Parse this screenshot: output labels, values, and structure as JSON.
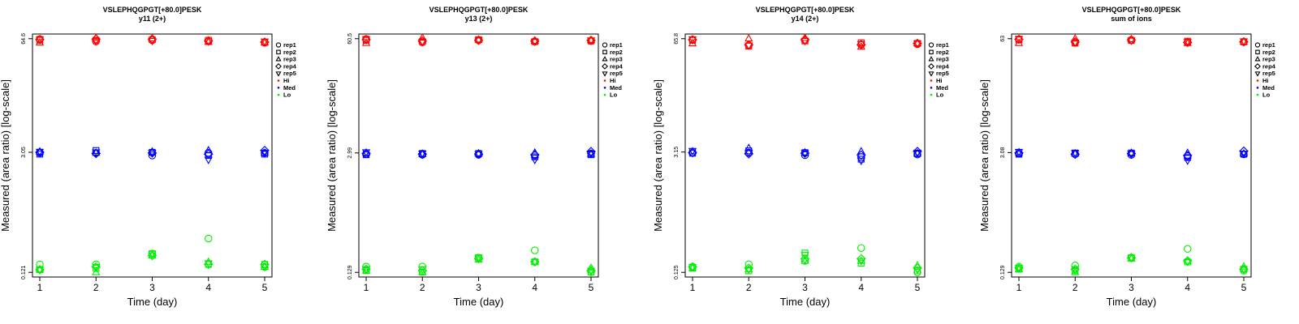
{
  "colors": {
    "Hi": "#ff0000",
    "Med": "#0000ff",
    "Lo": "#00ee00"
  },
  "legend": {
    "reps": [
      {
        "label": "rep1",
        "shape": "circle"
      },
      {
        "label": "rep2",
        "shape": "square"
      },
      {
        "label": "rep3",
        "shape": "triangle-up"
      },
      {
        "label": "rep4",
        "shape": "diamond"
      },
      {
        "label": "rep5",
        "shape": "triangle-down"
      }
    ],
    "levels": [
      {
        "label": "Hi",
        "color": "#ff0000"
      },
      {
        "label": "Med",
        "color": "#0000ff"
      },
      {
        "label": "Lo",
        "color": "#00ee00"
      }
    ]
  },
  "chart_data": [
    {
      "type": "scatter",
      "title": "VSLEPHQGPGT[+80.0]PESK",
      "subtitle": "y11 (2+)",
      "xlabel": "Time (day)",
      "ylabel": "Measured (area ratio) [log-scale]",
      "yscale": "log",
      "x_ticks": [
        1,
        2,
        3,
        4,
        5
      ],
      "y_ticks": [
        "64.6",
        "3.05",
        "0.121"
      ],
      "ylim": [
        0.121,
        64.6
      ],
      "legend_position": "right",
      "series": [
        {
          "name": "Hi",
          "points": [
            {
              "rep": "rep1",
              "values": [
                64,
                60,
                62,
                60,
                58
              ]
            },
            {
              "rep": "rep2",
              "values": [
                62,
                62,
                63,
                62,
                59
              ]
            },
            {
              "rep": "rep3",
              "values": [
                58,
                66,
                65,
                59,
                58
              ]
            },
            {
              "rep": "rep4",
              "values": [
                63,
                64,
                64,
                61,
                59
              ]
            },
            {
              "rep": "rep5",
              "values": [
                64,
                60,
                61,
                60,
                60
              ]
            }
          ]
        },
        {
          "name": "Med",
          "points": [
            {
              "rep": "rep1",
              "values": [
                3.0,
                3.0,
                2.8,
                3.0,
                3.0
              ]
            },
            {
              "rep": "rep2",
              "values": [
                2.9,
                3.2,
                3.05,
                2.8,
                2.9
              ]
            },
            {
              "rep": "rep3",
              "values": [
                3.1,
                3.0,
                3.1,
                3.2,
                3.0
              ]
            },
            {
              "rep": "rep4",
              "values": [
                3.05,
                2.95,
                3.0,
                2.9,
                3.2
              ]
            },
            {
              "rep": "rep5",
              "values": [
                3.1,
                3.05,
                3.0,
                2.5,
                3.0
              ]
            }
          ]
        },
        {
          "name": "Lo",
          "points": [
            {
              "rep": "rep1",
              "values": [
                0.15,
                0.15,
                0.2,
                0.3,
                0.14
              ]
            },
            {
              "rep": "rep2",
              "values": [
                0.13,
                0.135,
                0.2,
                0.15,
                0.15
              ]
            },
            {
              "rep": "rep3",
              "values": [
                0.13,
                0.121,
                0.19,
                0.16,
                0.14
              ]
            },
            {
              "rep": "rep4",
              "values": [
                0.13,
                0.14,
                0.19,
                0.15,
                0.15
              ]
            },
            {
              "rep": "rep5",
              "values": [
                0.13,
                0.14,
                0.2,
                0.155,
                0.14
              ]
            }
          ]
        }
      ]
    },
    {
      "type": "scatter",
      "title": "VSLEPHQGPGT[+80.0]PESK",
      "subtitle": "y13 (2+)",
      "xlabel": "Time (day)",
      "ylabel": "Measured (area ratio) [log-scale]",
      "yscale": "log",
      "x_ticks": [
        1,
        2,
        3,
        4,
        5
      ],
      "y_ticks": [
        "60.5",
        "2.99",
        "0.129"
      ],
      "ylim": [
        0.129,
        60.5
      ],
      "legend_position": "right",
      "series": [
        {
          "name": "Hi",
          "points": [
            {
              "rep": "rep1",
              "values": [
                60,
                55,
                58,
                56,
                57
              ]
            },
            {
              "rep": "rep2",
              "values": [
                58,
                56,
                59,
                56,
                57
              ]
            },
            {
              "rep": "rep3",
              "values": [
                54,
                62,
                59,
                57,
                58
              ]
            },
            {
              "rep": "rep4",
              "values": [
                59,
                57,
                58,
                57,
                58
              ]
            },
            {
              "rep": "rep5",
              "values": [
                60,
                56,
                58,
                56,
                58
              ]
            }
          ]
        },
        {
          "name": "Med",
          "points": [
            {
              "rep": "rep1",
              "values": [
                2.9,
                2.85,
                2.85,
                2.8,
                2.95
              ]
            },
            {
              "rep": "rep2",
              "values": [
                2.85,
                2.95,
                2.95,
                2.7,
                2.85
              ]
            },
            {
              "rep": "rep3",
              "values": [
                3.0,
                2.9,
                2.95,
                3.0,
                2.9
              ]
            },
            {
              "rep": "rep4",
              "values": [
                2.95,
                2.9,
                2.9,
                2.85,
                3.1
              ]
            },
            {
              "rep": "rep5",
              "values": [
                3.05,
                2.95,
                2.9,
                2.5,
                2.95
              ]
            }
          ]
        },
        {
          "name": "Lo",
          "points": [
            {
              "rep": "rep1",
              "values": [
                0.15,
                0.15,
                0.19,
                0.23,
                0.13
              ]
            },
            {
              "rep": "rep2",
              "values": [
                0.135,
                0.13,
                0.19,
                0.17,
                0.13
              ]
            },
            {
              "rep": "rep3",
              "values": [
                0.135,
                0.129,
                0.18,
                0.17,
                0.145
              ]
            },
            {
              "rep": "rep4",
              "values": [
                0.14,
                0.135,
                0.185,
                0.17,
                0.135
              ]
            },
            {
              "rep": "rep5",
              "values": [
                0.14,
                0.14,
                0.19,
                0.17,
                0.135
              ]
            }
          ]
        }
      ]
    },
    {
      "type": "scatter",
      "title": "VSLEPHQGPGT[+80.0]PESK",
      "subtitle": "y14 (2+)",
      "xlabel": "Time (day)",
      "ylabel": "Measured (area ratio) [log-scale]",
      "yscale": "log",
      "x_ticks": [
        1,
        2,
        3,
        4,
        5
      ],
      "y_ticks": [
        "65.8",
        "3.15",
        "0.125"
      ],
      "ylim": [
        0.125,
        65.8
      ],
      "legend_position": "right",
      "series": [
        {
          "name": "Hi",
          "points": [
            {
              "rep": "rep1",
              "values": [
                64,
                55,
                63,
                56,
                57
              ]
            },
            {
              "rep": "rep2",
              "values": [
                63,
                54,
                62,
                59,
                58
              ]
            },
            {
              "rep": "rep3",
              "values": [
                58,
                66,
                67,
                53,
                58
              ]
            },
            {
              "rep": "rep4",
              "values": [
                64,
                56,
                64,
                56,
                58
              ]
            },
            {
              "rep": "rep5",
              "values": [
                65,
                55,
                62,
                57,
                58
              ]
            }
          ]
        },
        {
          "name": "Med",
          "points": [
            {
              "rep": "rep1",
              "values": [
                3.1,
                3.1,
                2.9,
                2.75,
                2.95
              ]
            },
            {
              "rep": "rep2",
              "values": [
                3.05,
                3.25,
                3.1,
                2.6,
                3.0
              ]
            },
            {
              "rep": "rep3",
              "values": [
                3.2,
                3.5,
                3.1,
                3.2,
                3.05
              ]
            },
            {
              "rep": "rep4",
              "values": [
                3.1,
                3.0,
                3.05,
                2.9,
                3.2
              ]
            },
            {
              "rep": "rep5",
              "values": [
                3.25,
                3.1,
                3.05,
                2.5,
                3.1
              ]
            }
          ]
        },
        {
          "name": "Lo",
          "points": [
            {
              "rep": "rep1",
              "values": [
                0.145,
                0.155,
                0.17,
                0.24,
                0.125
              ]
            },
            {
              "rep": "rep2",
              "values": [
                0.14,
                0.13,
                0.21,
                0.16,
                0.13
              ]
            },
            {
              "rep": "rep3",
              "values": [
                0.14,
                0.135,
                0.17,
                0.17,
                0.15
              ]
            },
            {
              "rep": "rep4",
              "values": [
                0.145,
                0.14,
                0.18,
                0.18,
                0.14
              ]
            },
            {
              "rep": "rep5",
              "values": [
                0.145,
                0.135,
                0.2,
                0.17,
                0.135
              ]
            }
          ]
        }
      ]
    },
    {
      "type": "scatter",
      "title": "VSLEPHQGPGT[+80.0]PESK",
      "subtitle": "sum of ions",
      "xlabel": "Time (day)",
      "ylabel": "Measured (area ratio) [log-scale]",
      "yscale": "log",
      "x_ticks": [
        1,
        2,
        3,
        4,
        5
      ],
      "y_ticks": [
        "63",
        "3.08",
        "0.129"
      ],
      "ylim": [
        0.129,
        63
      ],
      "legend_position": "right",
      "series": [
        {
          "name": "Hi",
          "points": [
            {
              "rep": "rep1",
              "values": [
                62,
                57,
                61,
                57,
                58
              ]
            },
            {
              "rep": "rep2",
              "values": [
                61,
                56,
                60,
                59,
                58
              ]
            },
            {
              "rep": "rep3",
              "values": [
                56,
                63,
                62,
                56,
                58
              ]
            },
            {
              "rep": "rep4",
              "values": [
                62,
                58,
                61,
                57,
                58
              ]
            },
            {
              "rep": "rep5",
              "values": [
                63,
                57,
                60,
                58,
                59
              ]
            }
          ]
        },
        {
          "name": "Med",
          "points": [
            {
              "rep": "rep1",
              "values": [
                3.0,
                2.95,
                2.9,
                2.8,
                2.95
              ]
            },
            {
              "rep": "rep2",
              "values": [
                2.95,
                3.05,
                3.05,
                2.7,
                2.95
              ]
            },
            {
              "rep": "rep3",
              "values": [
                3.1,
                3.0,
                3.05,
                3.05,
                3.0
              ]
            },
            {
              "rep": "rep4",
              "values": [
                3.05,
                2.95,
                3.0,
                2.85,
                3.2
              ]
            },
            {
              "rep": "rep5",
              "values": [
                3.15,
                3.05,
                3.0,
                2.5,
                3.0
              ]
            }
          ]
        },
        {
          "name": "Lo",
          "points": [
            {
              "rep": "rep1",
              "values": [
                0.15,
                0.155,
                0.19,
                0.24,
                0.135
              ]
            },
            {
              "rep": "rep2",
              "values": [
                0.14,
                0.135,
                0.19,
                0.17,
                0.14
              ]
            },
            {
              "rep": "rep3",
              "values": [
                0.14,
                0.129,
                0.185,
                0.175,
                0.15
              ]
            },
            {
              "rep": "rep4",
              "values": [
                0.145,
                0.14,
                0.19,
                0.175,
                0.14
              ]
            },
            {
              "rep": "rep5",
              "values": [
                0.145,
                0.14,
                0.19,
                0.17,
                0.14
              ]
            }
          ]
        }
      ]
    }
  ]
}
